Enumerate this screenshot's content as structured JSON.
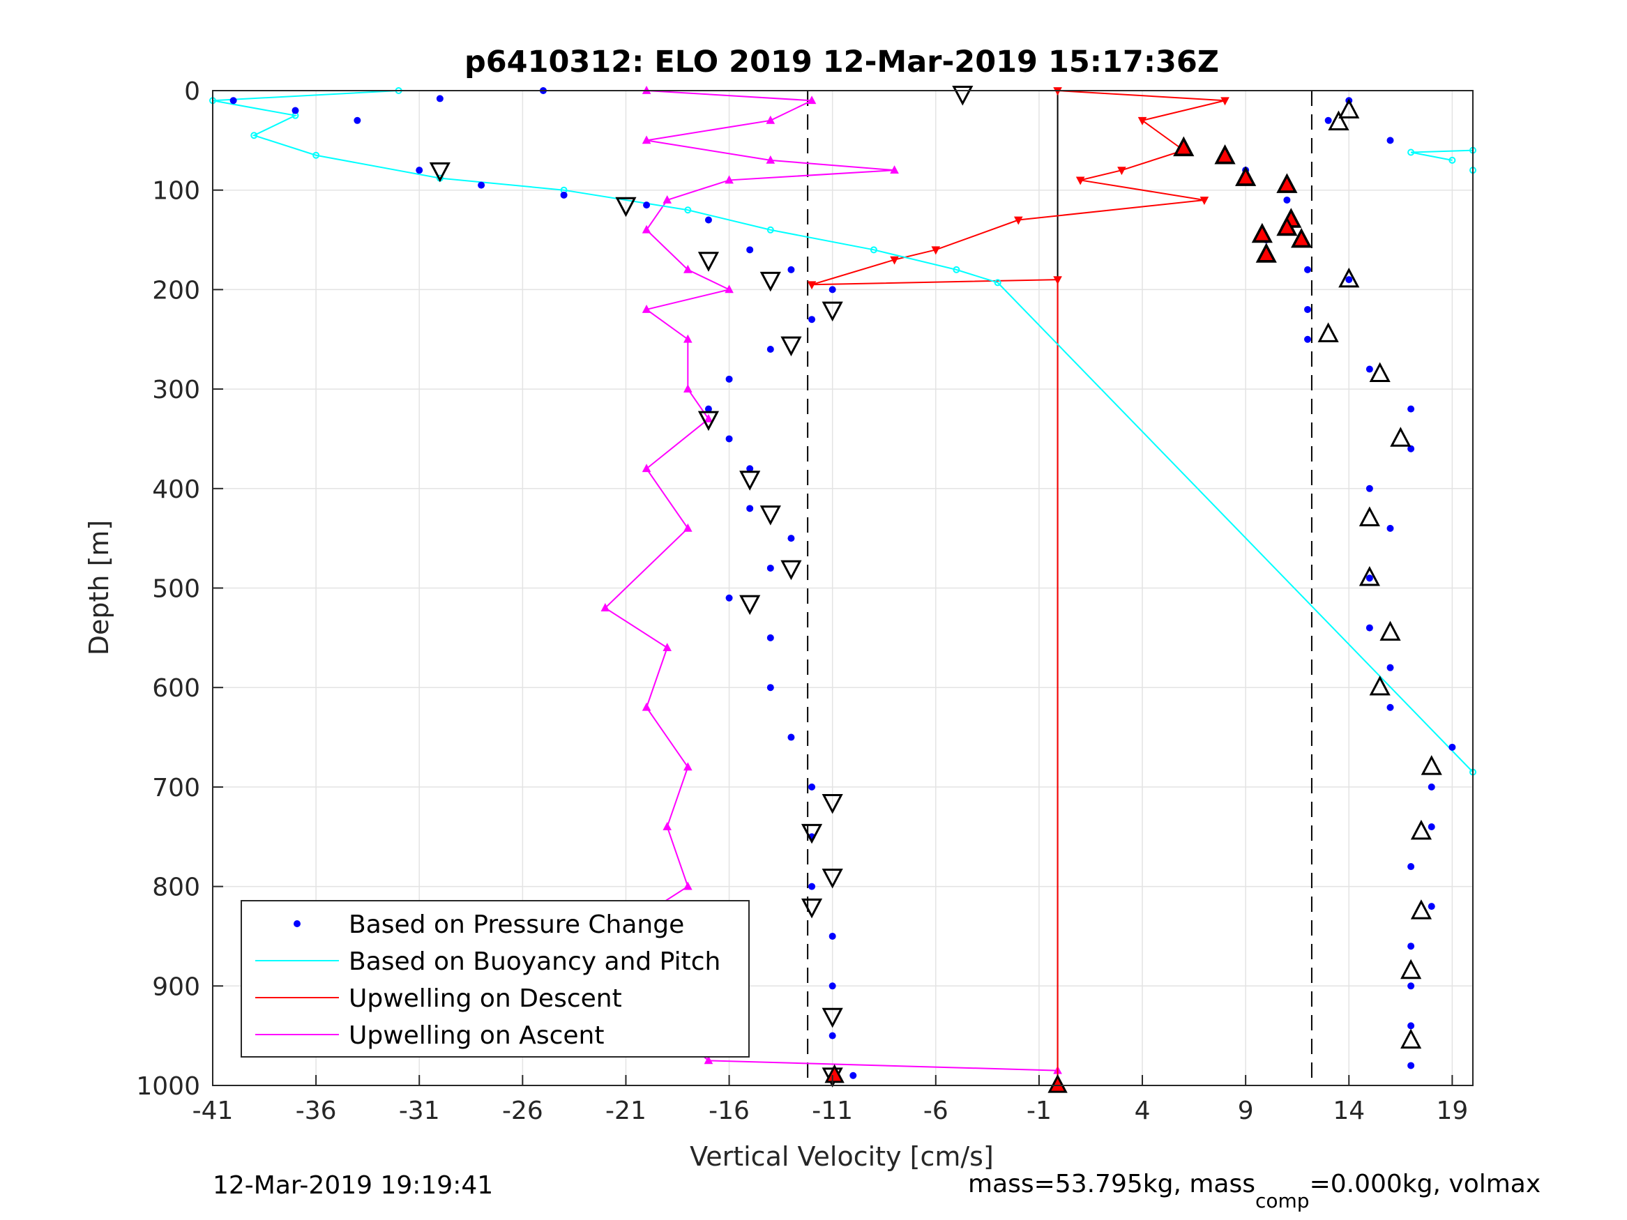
{
  "chart_data": {
    "type": "scatter",
    "title": "p6410312: ELO 2019 12-Mar-2019 15:17:36Z",
    "xlabel": "Vertical Velocity [cm/s]",
    "ylabel": "Depth [m]",
    "xlim": [
      -41,
      20
    ],
    "ylim": [
      1000,
      0
    ],
    "y_reversed": true,
    "grid": true,
    "legend_position": "bottom-left",
    "xticks": [
      -41,
      -36,
      -31,
      -26,
      -21,
      -16,
      -11,
      -6,
      -1,
      4,
      9,
      14,
      19
    ],
    "yticks": [
      0,
      100,
      200,
      300,
      400,
      500,
      600,
      700,
      800,
      900,
      1000
    ],
    "reference_lines": {
      "dashed_x": [
        -12.2,
        12.2
      ],
      "solid_x": [
        -0.1
      ]
    },
    "series": [
      {
        "name": "Based on Pressure Change",
        "color": "#0000ff",
        "marker": "dot",
        "descent": [
          [
            -25,
            0
          ],
          [
            -30,
            8
          ],
          [
            -40,
            10
          ],
          [
            -37,
            20
          ],
          [
            -34,
            30
          ],
          [
            -31,
            80
          ],
          [
            -28,
            95
          ],
          [
            -24,
            105
          ],
          [
            -20,
            115
          ],
          [
            -17,
            130
          ],
          [
            -15,
            160
          ],
          [
            -13,
            180
          ],
          [
            -11,
            200
          ],
          [
            -12,
            230
          ],
          [
            -14,
            260
          ],
          [
            -16,
            290
          ],
          [
            -17,
            320
          ],
          [
            -16,
            350
          ],
          [
            -15,
            380
          ],
          [
            -15,
            420
          ],
          [
            -13,
            450
          ],
          [
            -14,
            480
          ],
          [
            -16,
            510
          ],
          [
            -14,
            550
          ],
          [
            -14,
            600
          ],
          [
            -13,
            650
          ],
          [
            -12,
            700
          ],
          [
            -12,
            750
          ],
          [
            -12,
            800
          ],
          [
            -11,
            850
          ],
          [
            -11,
            900
          ],
          [
            -11,
            950
          ],
          [
            -10,
            990
          ]
        ],
        "ascent": [
          [
            14,
            10
          ],
          [
            13,
            30
          ],
          [
            16,
            50
          ],
          [
            9,
            80
          ],
          [
            11,
            110
          ],
          [
            10,
            150
          ],
          [
            12,
            180
          ],
          [
            14,
            190
          ],
          [
            12,
            220
          ],
          [
            12,
            250
          ],
          [
            15,
            280
          ],
          [
            17,
            320
          ],
          [
            17,
            360
          ],
          [
            15,
            400
          ],
          [
            16,
            440
          ],
          [
            15,
            490
          ],
          [
            15,
            540
          ],
          [
            16,
            580
          ],
          [
            16,
            620
          ],
          [
            19,
            660
          ],
          [
            18,
            700
          ],
          [
            18,
            740
          ],
          [
            17,
            780
          ],
          [
            18,
            820
          ],
          [
            17,
            860
          ],
          [
            17,
            900
          ],
          [
            17,
            940
          ],
          [
            17,
            980
          ]
        ]
      },
      {
        "name": "Based on Buoyancy and Pitch",
        "color": "#00ffff",
        "marker": "line",
        "points": [
          [
            -32,
            0
          ],
          [
            -41,
            10
          ],
          [
            -37,
            25
          ],
          [
            -39,
            45
          ],
          [
            -36,
            65
          ],
          [
            -30,
            88
          ],
          [
            -24,
            100
          ],
          [
            -18,
            120
          ],
          [
            -14,
            140
          ],
          [
            -9,
            160
          ],
          [
            -5,
            180
          ],
          [
            -3,
            193
          ],
          [
            20,
            685
          ],
          [
            20,
            80
          ],
          [
            20,
            60
          ],
          [
            17,
            62
          ],
          [
            19,
            70
          ]
        ]
      },
      {
        "name": "Upwelling on Descent",
        "color": "#ff0000",
        "marker": "triangle-down",
        "points": [
          [
            -0.1,
            0
          ],
          [
            8,
            10
          ],
          [
            4,
            30
          ],
          [
            6,
            60
          ],
          [
            3,
            80
          ],
          [
            1,
            90
          ],
          [
            7,
            110
          ],
          [
            -2,
            130
          ],
          [
            -6,
            160
          ],
          [
            -8,
            170
          ],
          [
            -12,
            195
          ],
          [
            -0.1,
            190
          ],
          [
            -0.1,
            1000
          ]
        ]
      },
      {
        "name": "Upwelling on Ascent",
        "color": "#ff00ff",
        "marker": "triangle-up",
        "points": [
          [
            -20,
            0
          ],
          [
            -12,
            10
          ],
          [
            -14,
            30
          ],
          [
            -20,
            50
          ],
          [
            -14,
            70
          ],
          [
            -8,
            80
          ],
          [
            -16,
            90
          ],
          [
            -19,
            110
          ],
          [
            -20,
            140
          ],
          [
            -18,
            180
          ],
          [
            -16,
            200
          ],
          [
            -20,
            220
          ],
          [
            -18,
            250
          ],
          [
            -18,
            300
          ],
          [
            -17,
            330
          ],
          [
            -20,
            380
          ],
          [
            -18,
            440
          ],
          [
            -22,
            520
          ],
          [
            -19,
            560
          ],
          [
            -20,
            620
          ],
          [
            -18,
            680
          ],
          [
            -19,
            740
          ],
          [
            -18,
            800
          ],
          [
            -21,
            840
          ],
          [
            -18,
            870
          ],
          [
            -20,
            900
          ],
          [
            -19,
            940
          ],
          [
            -17,
            975
          ],
          [
            -0.1,
            985
          ]
        ]
      }
    ],
    "descent_markers": [
      [
        -4.7,
        3
      ],
      [
        -30,
        80
      ],
      [
        -21,
        115
      ],
      [
        -17,
        170
      ],
      [
        -14,
        190
      ],
      [
        -11,
        220
      ],
      [
        -13,
        255
      ],
      [
        -17,
        330
      ],
      [
        -15,
        390
      ],
      [
        -14,
        425
      ],
      [
        -13,
        480
      ],
      [
        -15,
        515
      ],
      [
        -11,
        715
      ],
      [
        -12,
        745
      ],
      [
        -11,
        790
      ],
      [
        -12,
        820
      ],
      [
        -11,
        930
      ],
      [
        -11,
        990
      ]
    ],
    "ascent_markers": [
      [
        14,
        20
      ],
      [
        13.5,
        32
      ],
      [
        6,
        58
      ],
      [
        8,
        66
      ],
      [
        9,
        88
      ],
      [
        11,
        95
      ],
      [
        11.2,
        130
      ],
      [
        11,
        138
      ],
      [
        9.8,
        145
      ],
      [
        11.7,
        150
      ],
      [
        10,
        165
      ],
      [
        14,
        190
      ],
      [
        13,
        245
      ],
      [
        15.5,
        285
      ],
      [
        16.5,
        350
      ],
      [
        15,
        430
      ],
      [
        15,
        490
      ],
      [
        16,
        545
      ],
      [
        15.5,
        600
      ],
      [
        18,
        680
      ],
      [
        17.5,
        745
      ],
      [
        17.5,
        825
      ],
      [
        17,
        885
      ],
      [
        17,
        955
      ]
    ],
    "ascent_red_markers": [
      [
        6,
        58
      ],
      [
        8,
        66
      ],
      [
        9,
        88
      ],
      [
        11,
        95
      ],
      [
        11.2,
        130
      ],
      [
        11,
        138
      ],
      [
        9.8,
        145
      ],
      [
        11.7,
        150
      ],
      [
        10,
        165
      ],
      [
        -0.1,
        1000
      ],
      [
        -10.9,
        990
      ]
    ]
  },
  "footer": {
    "timestamp": "12-Mar-2019 19:19:41",
    "mass_prefix": "mass=53.795kg, mass",
    "mass_sub": "comp",
    "mass_suffix": "=0.000kg, volmax"
  }
}
